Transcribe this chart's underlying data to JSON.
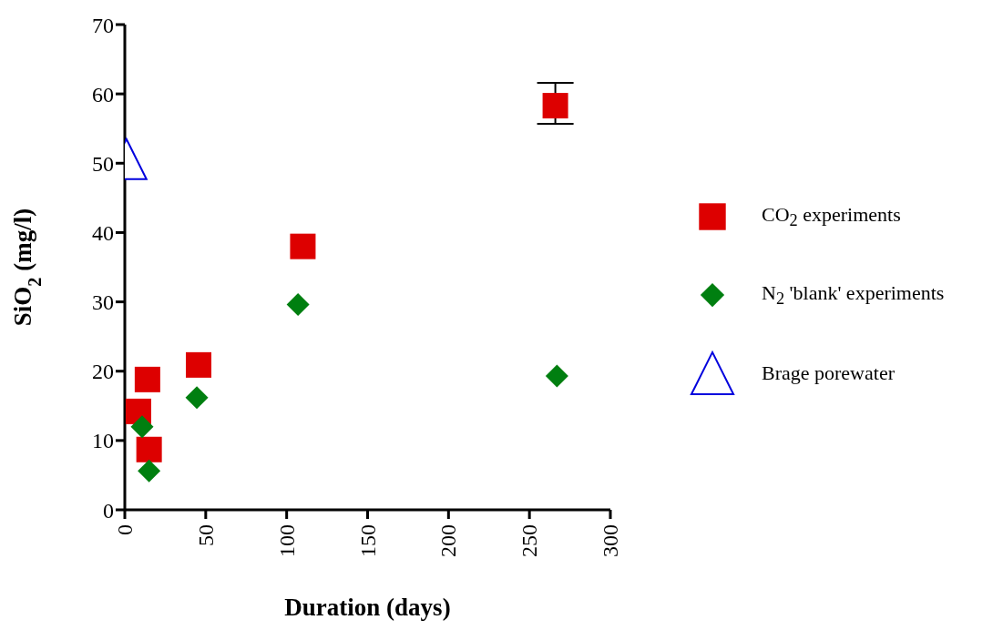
{
  "chart_data": {
    "type": "scatter",
    "xlabel": "Duration (days)",
    "ylabel": "SiO$_{2}$ (mg/l)",
    "xlim": [
      0,
      300
    ],
    "xticks": [
      0,
      50,
      100,
      150,
      200,
      250,
      300
    ],
    "ylim": [
      0,
      70
    ],
    "yticks": [
      0,
      10,
      20,
      30,
      40,
      50,
      60,
      70
    ],
    "legend": "right",
    "grid": false,
    "series": [
      {
        "name": "CO$_{2}$ experiments",
        "color": "#dd0000",
        "marker": "square",
        "x": [
          8.4,
          14,
          15,
          45.6,
          110,
          266
        ],
        "values": [
          14.2,
          18.8,
          8.7,
          20.9,
          38,
          58.3
        ],
        "errors": [
          null,
          null,
          null,
          null,
          null,
          [
            55.7,
            61.6
          ]
        ]
      },
      {
        "name": "N$_{2}$ 'blank' experiments",
        "color": "#007f10",
        "marker": "diamond",
        "x": [
          10.7,
          15,
          44.5,
          107,
          267
        ],
        "values": [
          12,
          5.6,
          16.2,
          29.6,
          19.3
        ]
      },
      {
        "name": "Brage porewater",
        "color": "#0000dd",
        "marker": "triangle",
        "x": [
          1
        ],
        "values": [
          50.6
        ]
      }
    ]
  }
}
